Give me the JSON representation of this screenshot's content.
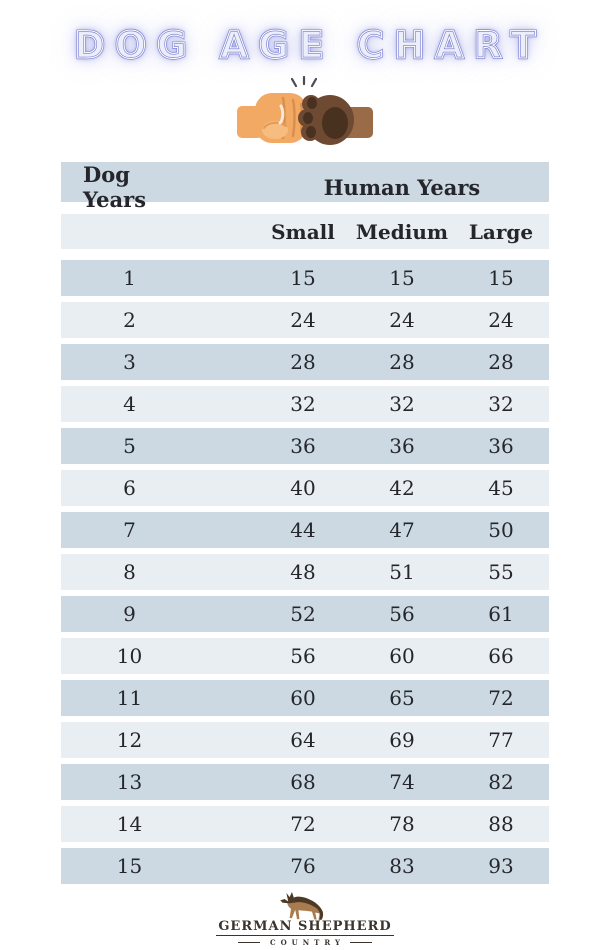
{
  "chart_data": {
    "type": "table",
    "title": "DOG AGE CHART",
    "column_headers": {
      "dog_years": "Dog Years",
      "group": "Human Years",
      "sizes": [
        "Small",
        "Medium",
        "Large"
      ]
    },
    "rows": [
      [
        "1",
        "15",
        "15",
        "15"
      ],
      [
        "2",
        "24",
        "24",
        "24"
      ],
      [
        "3",
        "28",
        "28",
        "28"
      ],
      [
        "4",
        "32",
        "32",
        "32"
      ],
      [
        "5",
        "36",
        "36",
        "36"
      ],
      [
        "6",
        "40",
        "42",
        "45"
      ],
      [
        "7",
        "44",
        "47",
        "50"
      ],
      [
        "8",
        "48",
        "51",
        "55"
      ],
      [
        "9",
        "52",
        "56",
        "61"
      ],
      [
        "10",
        "56",
        "60",
        "66"
      ],
      [
        "11",
        "60",
        "65",
        "72"
      ],
      [
        "12",
        "64",
        "69",
        "77"
      ],
      [
        "13",
        "68",
        "74",
        "82"
      ],
      [
        "14",
        "72",
        "78",
        "88"
      ],
      [
        "15",
        "76",
        "83",
        "93"
      ]
    ],
    "layout": {
      "zebra_striping": true,
      "row_gap": true,
      "alignment": "centered"
    }
  },
  "icons": {
    "hero": "fist-bump-human-fist-and-dog-paw-icon",
    "footer": "german-shepherd-dog-icon"
  },
  "footer": {
    "logo_title": "GERMAN SHEPHERD",
    "logo_subtitle": "COUNTRY"
  },
  "colors": {
    "row_dark": "#ccd9e2",
    "row_light": "#e9eef3",
    "neon_purple": "#8186d2",
    "neon_glow": "#b9bce8",
    "text_dark": "#24262c",
    "fist_skin": "#f2a963",
    "paw_brown": "#6e4a33",
    "paw_arm": "#9a6b47",
    "logo_brown": "#4d3a26"
  }
}
